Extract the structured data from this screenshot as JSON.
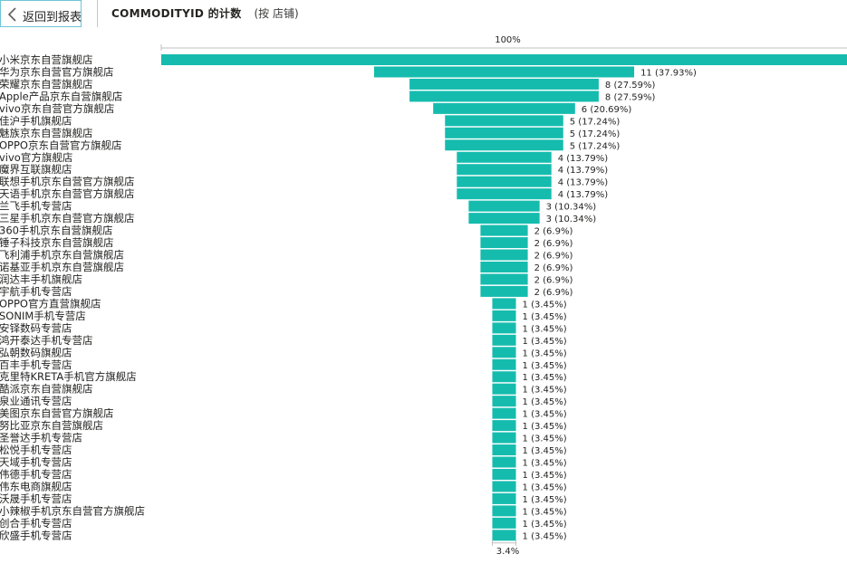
{
  "header": {
    "back_label": "返回到报表",
    "title_main": "COMMODITYID 的计数",
    "title_sub": "(按 店铺)"
  },
  "colors": {
    "bar": "#15bcae",
    "border": "#6ec4d6",
    "axis": "#bfbfbf"
  },
  "chart_data": {
    "type": "funnel",
    "title": "COMMODITYID 的计数 (按 店铺)",
    "top_label": "100%",
    "bottom_label": "3.4%",
    "categories": [
      "小米京东自营旗舰店",
      "华为京东自营官方旗舰店",
      "荣耀京东自营旗舰店",
      "Apple产品京东自营旗舰店",
      "vivo京东自营官方旗舰店",
      "佳沪手机旗舰店",
      "魅族京东自营旗舰店",
      "OPPO京东自营官方旗舰店",
      "vivo官方旗舰店",
      "魔界互联旗舰店",
      "联想手机京东自营官方旗舰店",
      "天语手机京东自营官方旗舰店",
      "兰飞手机专营店",
      "三星手机京东自营官方旗舰店",
      "360手机京东自营旗舰店",
      "锤子科技京东自营旗舰店",
      "飞利浦手机京东自营旗舰店",
      "诺基亚手机京东自营旗舰店",
      "润达丰手机旗舰店",
      "宇航手机专营店",
      "OPPO官方直营旗舰店",
      "SONIM手机专营店",
      "安铎数码专营店",
      "鸿开泰达手机专营店",
      "弘朝数码旗舰店",
      "百丰手机专营店",
      "克里特KRETA手机官方旗舰店",
      "酷派京东自营旗舰店",
      "泉业通讯专营店",
      "美图京东自营官方旗舰店",
      "努比亚京东自营旗舰店",
      "圣誉达手机专营店",
      "松悦手机专营店",
      "天域手机专营店",
      "伟德手机专营店",
      "伟东电商旗舰店",
      "沃晟手机专营店",
      "小辣椒手机京东自营官方旗舰店",
      "创合手机专营店",
      "欣盛手机专营店"
    ],
    "values": [
      29,
      11,
      8,
      8,
      6,
      5,
      5,
      5,
      4,
      4,
      4,
      4,
      3,
      3,
      2,
      2,
      2,
      2,
      2,
      2,
      1,
      1,
      1,
      1,
      1,
      1,
      1,
      1,
      1,
      1,
      1,
      1,
      1,
      1,
      1,
      1,
      1,
      1,
      1,
      1
    ],
    "value_labels": [
      "",
      "11 (37.93%)",
      "8 (27.59%)",
      "8 (27.59%)",
      "6 (20.69%)",
      "5 (17.24%)",
      "5 (17.24%)",
      "5 (17.24%)",
      "4 (13.79%)",
      "4 (13.79%)",
      "4 (13.79%)",
      "4 (13.79%)",
      "3 (10.34%)",
      "3 (10.34%)",
      "2 (6.9%)",
      "2 (6.9%)",
      "2 (6.9%)",
      "2 (6.9%)",
      "2 (6.9%)",
      "2 (6.9%)",
      "1 (3.45%)",
      "1 (3.45%)",
      "1 (3.45%)",
      "1 (3.45%)",
      "1 (3.45%)",
      "1 (3.45%)",
      "1 (3.45%)",
      "1 (3.45%)",
      "1 (3.45%)",
      "1 (3.45%)",
      "1 (3.45%)",
      "1 (3.45%)",
      "1 (3.45%)",
      "1 (3.45%)",
      "1 (3.45%)",
      "1 (3.45%)",
      "1 (3.45%)",
      "1 (3.45%)",
      "1 (3.45%)",
      "1 (3.45%)"
    ]
  }
}
